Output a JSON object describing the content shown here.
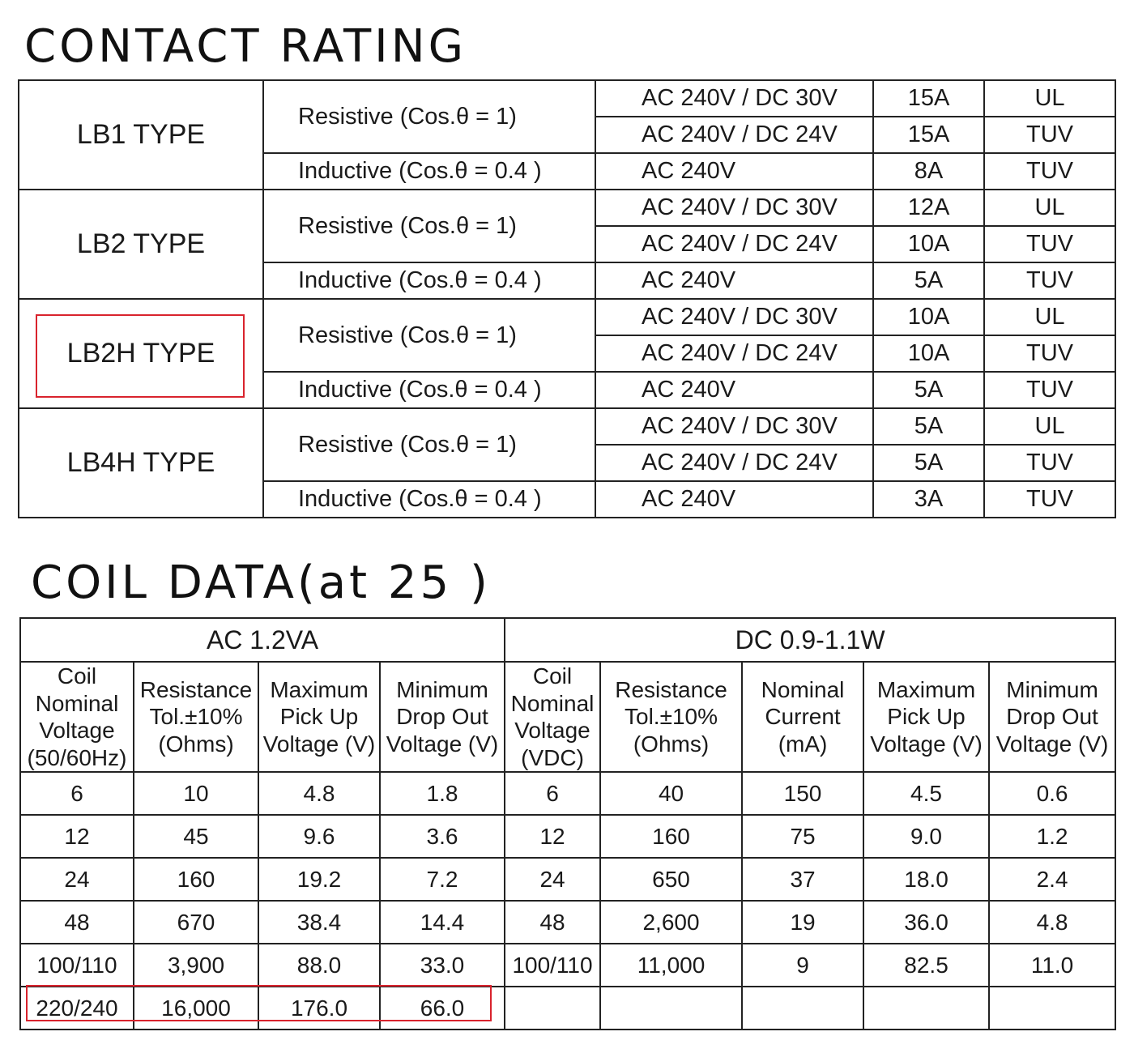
{
  "contact_rating": {
    "title": "CONTACT RATING",
    "types": [
      {
        "type": "LB1 TYPE",
        "resistive_label": "Resistive (Cos.θ = 1)",
        "inductive_label": "Inductive (Cos.θ = 0.4 )",
        "rows": [
          {
            "voltage": "AC 240V / DC 30V",
            "current": "15A",
            "cert": "UL"
          },
          {
            "voltage": "AC 240V / DC 24V",
            "current": "15A",
            "cert": "TUV"
          },
          {
            "voltage": "AC 240V",
            "current": "8A",
            "cert": "TUV"
          }
        ]
      },
      {
        "type": "LB2 TYPE",
        "resistive_label": "Resistive (Cos.θ = 1)",
        "inductive_label": "Inductive (Cos.θ = 0.4 )",
        "rows": [
          {
            "voltage": "AC 240V / DC 30V",
            "current": "12A",
            "cert": "UL"
          },
          {
            "voltage": "AC 240V / DC 24V",
            "current": "10A",
            "cert": "TUV"
          },
          {
            "voltage": "AC 240V",
            "current": "5A",
            "cert": "TUV"
          }
        ]
      },
      {
        "type": "LB2H TYPE",
        "resistive_label": "Resistive (Cos.θ = 1)",
        "inductive_label": "Inductive (Cos.θ = 0.4 )",
        "rows": [
          {
            "voltage": "AC 240V / DC 30V",
            "current": "10A",
            "cert": "UL"
          },
          {
            "voltage": "AC 240V / DC 24V",
            "current": "10A",
            "cert": "TUV"
          },
          {
            "voltage": "AC 240V",
            "current": "5A",
            "cert": "TUV"
          }
        ]
      },
      {
        "type": "LB4H TYPE",
        "resistive_label": "Resistive (Cos.θ = 1)",
        "inductive_label": "Inductive (Cos.θ = 0.4 )",
        "rows": [
          {
            "voltage": "AC 240V / DC 30V",
            "current": "5A",
            "cert": "UL"
          },
          {
            "voltage": "AC 240V / DC 24V",
            "current": "5A",
            "cert": "TUV"
          },
          {
            "voltage": "AC 240V",
            "current": "3A",
            "cert": "TUV"
          }
        ]
      }
    ]
  },
  "coil_data": {
    "title": "COIL DATA(at 25 )",
    "ac_group": "AC  1.2VA",
    "dc_group": "DC  0.9-1.1W",
    "headers": [
      [
        "Coil",
        "Nominal",
        "Voltage",
        "(50/60Hz)"
      ],
      [
        "Resistance",
        "Tol.±10%",
        "(Ohms)"
      ],
      [
        "Maximum",
        "Pick Up",
        "Voltage (V)"
      ],
      [
        "Minimum",
        "Drop Out",
        "Voltage (V)"
      ],
      [
        "Coil",
        "Nominal",
        "Voltage",
        "(VDC)"
      ],
      [
        "Resistance",
        "Tol.±10%",
        "(Ohms)"
      ],
      [
        "Nominal",
        "Current",
        "(mA)"
      ],
      [
        "Maximum",
        "Pick Up",
        "Voltage (V)"
      ],
      [
        "Minimum",
        "Drop Out",
        "Voltage (V)"
      ]
    ],
    "rows": [
      [
        "6",
        "10",
        "4.8",
        "1.8",
        "6",
        "40",
        "150",
        "4.5",
        "0.6"
      ],
      [
        "12",
        "45",
        "9.6",
        "3.6",
        "12",
        "160",
        "75",
        "9.0",
        "1.2"
      ],
      [
        "24",
        "160",
        "19.2",
        "7.2",
        "24",
        "650",
        "37",
        "18.0",
        "2.4"
      ],
      [
        "48",
        "670",
        "38.4",
        "14.4",
        "48",
        "2,600",
        "19",
        "36.0",
        "4.8"
      ],
      [
        "100/110",
        "3,900",
        "88.0",
        "33.0",
        "100/110",
        "11,000",
        "9",
        "82.5",
        "11.0"
      ],
      [
        "220/240",
        "16,000",
        "176.0",
        "66.0",
        "",
        "",
        "",
        "",
        ""
      ]
    ]
  },
  "highlight_color": "#d9232d"
}
